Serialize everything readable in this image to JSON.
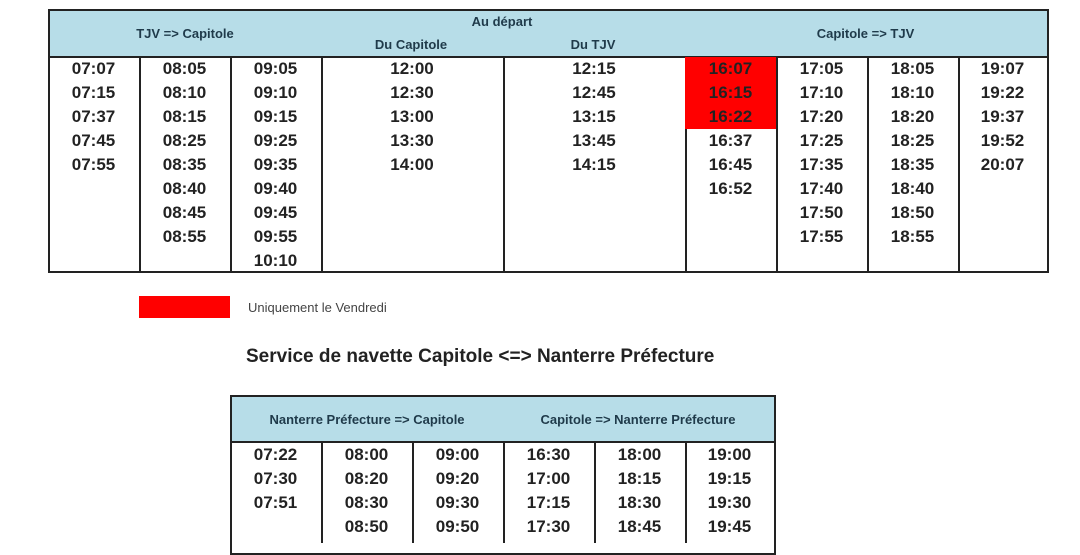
{
  "top_table": {
    "header_left": "TJV => Capitole",
    "header_middle": "Au départ",
    "sub_left": "Du Capitole",
    "sub_right": "Du TJV",
    "header_right": "Capitole => TJV",
    "columns": [
      [
        "07:07",
        "07:15",
        "07:37",
        "07:45",
        "07:55"
      ],
      [
        "08:05",
        "08:10",
        "08:15",
        "08:25",
        "08:35",
        "08:40",
        "08:45",
        "08:55"
      ],
      [
        "09:05",
        "09:10",
        "09:15",
        "09:25",
        "09:35",
        "09:40",
        "09:45",
        "09:55",
        "10:10"
      ],
      [
        "12:00",
        "12:30",
        "13:00",
        "13:30",
        "14:00"
      ],
      [
        "12:15",
        "12:45",
        "13:15",
        "13:45",
        "14:15"
      ],
      [
        "16:07",
        "16:15",
        "16:22",
        "16:37",
        "16:45",
        "16:52"
      ],
      [
        "17:05",
        "17:10",
        "17:20",
        "17:25",
        "17:35",
        "17:40",
        "17:50",
        "17:55"
      ],
      [
        "18:05",
        "18:10",
        "18:20",
        "18:25",
        "18:35",
        "18:40",
        "18:50",
        "18:55"
      ],
      [
        "19:07",
        "19:22",
        "19:37",
        "19:52",
        "20:07"
      ]
    ],
    "friday_only": [
      "16:07",
      "16:15",
      "16:22"
    ]
  },
  "legend": {
    "color": "#ff0000",
    "label": "Uniquement le Vendredi"
  },
  "section_title": "Service de navette Capitole <=> Nanterre Préfecture",
  "bottom_table": {
    "header_left": "Nanterre Préfecture => Capitole",
    "header_right": "Capitole => Nanterre Préfecture",
    "columns": [
      [
        "07:22",
        "07:30",
        "07:51"
      ],
      [
        "08:00",
        "08:20",
        "08:30",
        "08:50"
      ],
      [
        "09:00",
        "09:20",
        "09:30",
        "09:50"
      ],
      [
        "16:30",
        "17:00",
        "17:15",
        "17:30"
      ],
      [
        "18:00",
        "18:15",
        "18:30",
        "18:45"
      ],
      [
        "19:00",
        "19:15",
        "19:30",
        "19:45"
      ]
    ]
  },
  "colors": {
    "header_bg": "#b7dde8",
    "highlight": "#ff0000"
  }
}
